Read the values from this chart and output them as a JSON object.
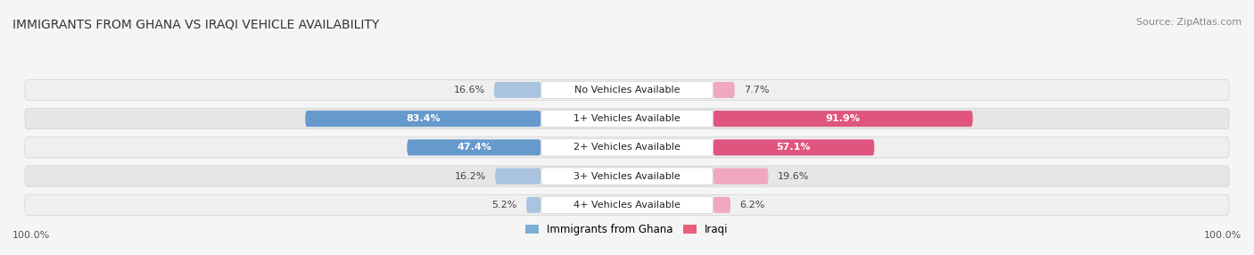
{
  "title": "IMMIGRANTS FROM GHANA VS IRAQI VEHICLE AVAILABILITY",
  "source": "Source: ZipAtlas.com",
  "categories": [
    "No Vehicles Available",
    "1+ Vehicles Available",
    "2+ Vehicles Available",
    "3+ Vehicles Available",
    "4+ Vehicles Available"
  ],
  "ghana_values": [
    16.6,
    83.4,
    47.4,
    16.2,
    5.2
  ],
  "iraqi_values": [
    7.7,
    91.9,
    57.1,
    19.6,
    6.2
  ],
  "ghana_color_strong": "#6699cc",
  "ghana_color_light": "#aac4e0",
  "iraqi_color_strong": "#e05580",
  "iraqi_color_light": "#f0a8be",
  "ghana_legend_color": "#7bafd4",
  "iraqi_legend_color": "#e8607a",
  "row_bg_odd": "#efefef",
  "row_bg_even": "#e6e6e6",
  "background_color": "#f5f5f5",
  "legend_ghana": "Immigrants from Ghana",
  "legend_iraqi": "Iraqi",
  "title_fontsize": 10,
  "source_fontsize": 8,
  "bar_label_fontsize": 8,
  "cat_label_fontsize": 8
}
